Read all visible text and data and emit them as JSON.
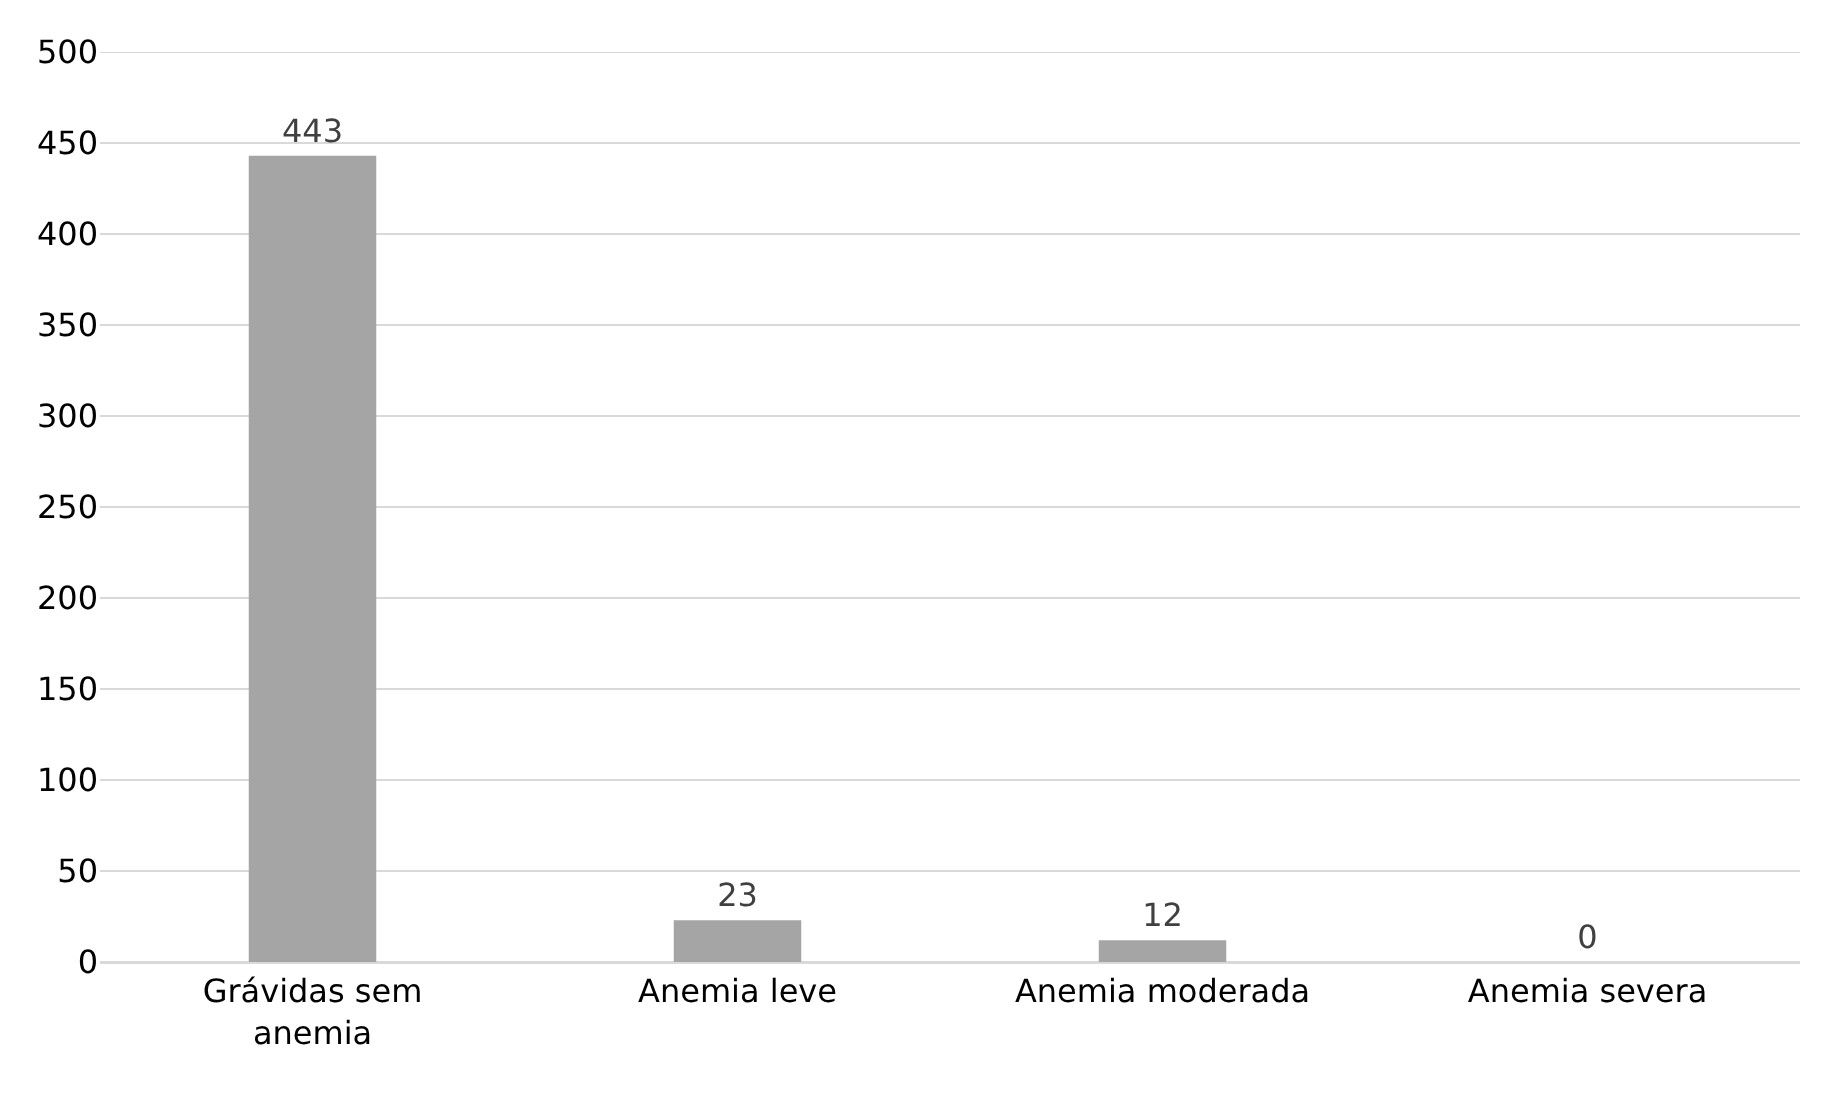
{
  "chart_data": {
    "type": "bar",
    "categories": [
      "Grávidas sem anemia",
      "Anemia leve",
      "Anemia moderada",
      "Anemia severa"
    ],
    "values": [
      443,
      23,
      12,
      0
    ],
    "color": "#a5a5a5",
    "ylim": [
      0,
      500
    ],
    "yticks": [
      0,
      50,
      100,
      150,
      200,
      250,
      300,
      350,
      400,
      450,
      500
    ],
    "grid": "y",
    "data_labels": true
  }
}
